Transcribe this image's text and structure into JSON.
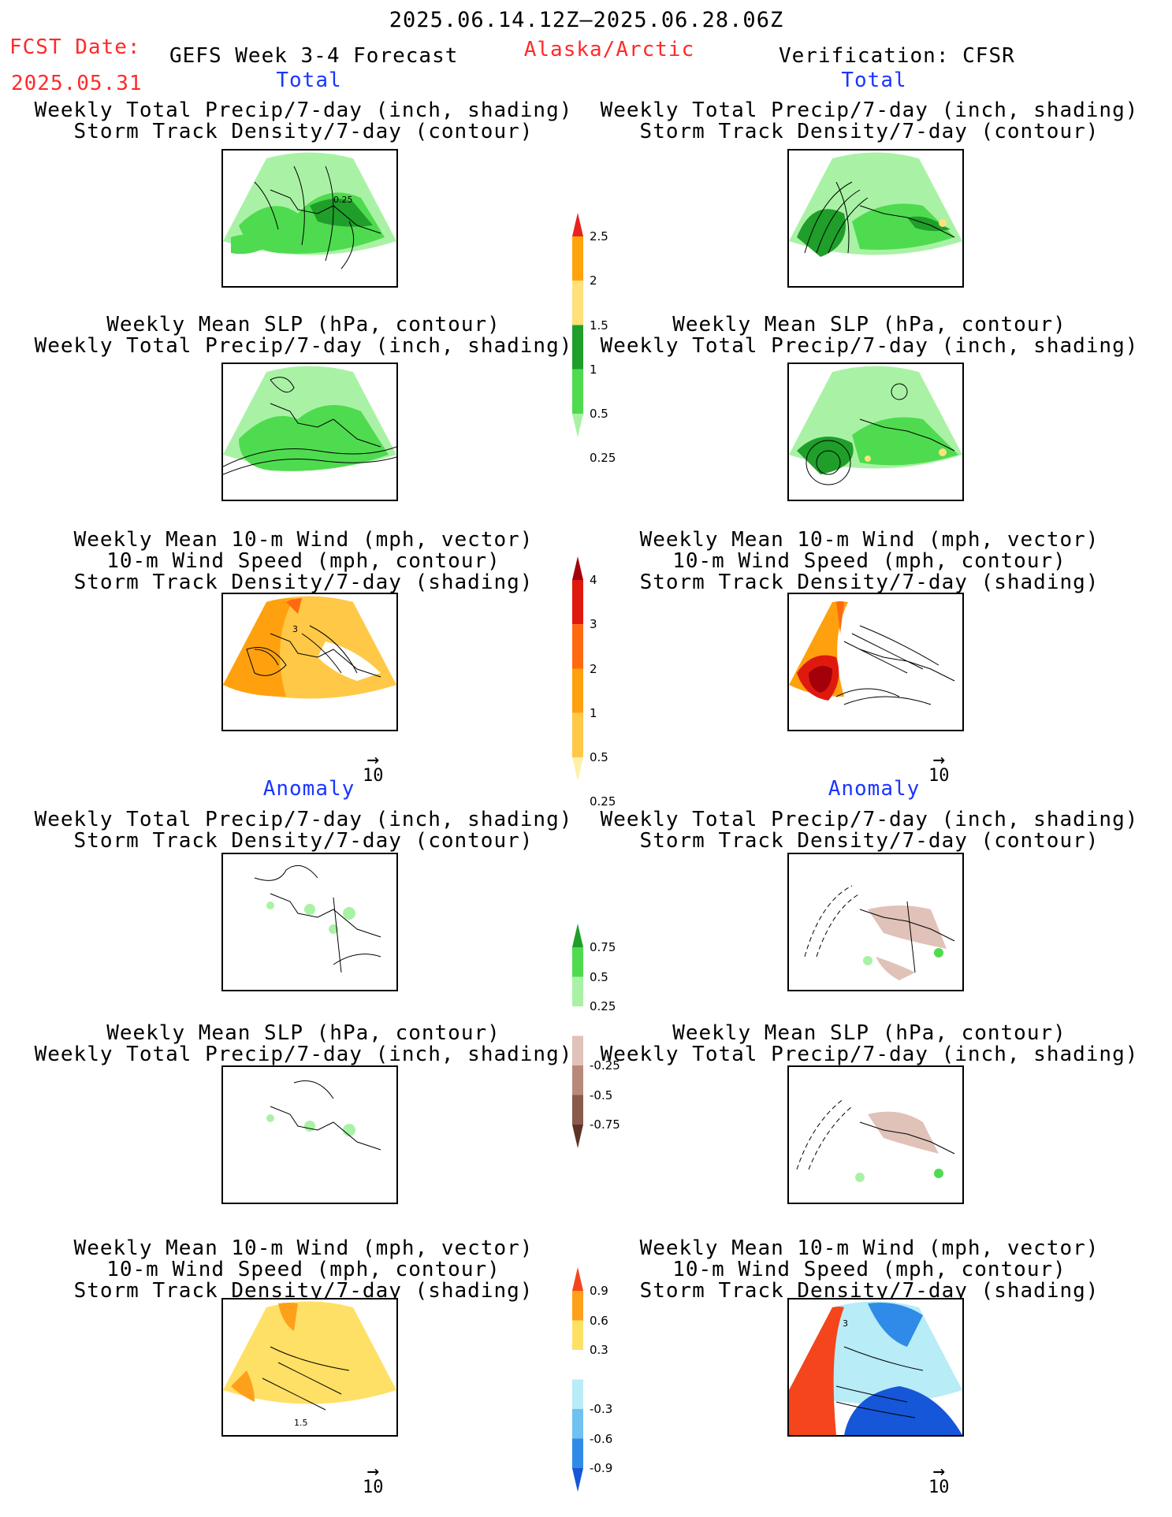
{
  "header": {
    "date_range": "2025.06.14.12Z–2025.06.28.06Z",
    "fcst_label": "FCST Date:",
    "fcst_date": "2025.05.31",
    "model": "GEFS Week 3-4 Forecast",
    "region": "Alaska/Arctic",
    "verification": "Verification: CFSR"
  },
  "sections": {
    "total_left": "Total",
    "total_right": "Total",
    "anomaly_left": "Anomaly",
    "anomaly_right": "Anomaly"
  },
  "titles": {
    "precip_storm": [
      "Weekly Total Precip/7-day (inch, shading)",
      "Storm Track Density/7-day (contour)"
    ],
    "slp_precip": [
      "Weekly Mean SLP (hPa, contour)",
      "Weekly Total Precip/7-day (inch, shading)"
    ],
    "wind_storm": [
      "Weekly Mean 10-m Wind (mph, vector)",
      "10-m Wind Speed (mph, contour)",
      "Storm Track Density/7-day (shading)"
    ]
  },
  "panels": {
    "row1_left": {
      "contour_label": "0.25",
      "field": "total precip + storm track"
    },
    "row3_left": {
      "contour_label": "3",
      "field": "wind + storm track total"
    },
    "row3_right": {
      "contour_label": "",
      "field": "wind + storm track total"
    },
    "row6_left": {
      "contour_label": "1.5",
      "field": "wind + storm track anomaly"
    },
    "row6_right": {
      "contour_label": "3",
      "field": "wind + storm track anomaly"
    }
  },
  "vector_reference": {
    "value": "10",
    "units": "mph"
  },
  "colorbars": {
    "precip_total": {
      "labels": [
        "2.5",
        "2",
        "1.5",
        "1",
        "0.5",
        "0.25"
      ],
      "colors": [
        "#e8221c",
        "#ffa30a",
        "#ffe07a",
        "#1f9e2a",
        "#4fdb4f",
        "#a9f2a5"
      ]
    },
    "storm_total": {
      "labels": [
        "4",
        "3",
        "2",
        "1",
        "0.5",
        "0.25"
      ],
      "colors": [
        "#a3000a",
        "#e0190f",
        "#ff6a10",
        "#ffa10e",
        "#ffc847",
        "#fff0a8"
      ]
    },
    "precip_anom": {
      "labels": [
        "0.75",
        "0.5",
        "0.25",
        "-0.25",
        "-0.5",
        "-0.75"
      ],
      "colors": [
        "#1f9e2a",
        "#4fdb4f",
        "#a9f2a5",
        "#ffffff",
        "#e0c2b8",
        "#b8897a",
        "#8a5a4c",
        "#5c3427"
      ]
    },
    "storm_anom": {
      "labels": [
        "0.9",
        "0.6",
        "0.3",
        "-0.3",
        "-0.6",
        "-0.9"
      ],
      "colors": [
        "#f5451c",
        "#ffa01a",
        "#ffe066",
        "#ffffff",
        "#b8ecf7",
        "#6fc2f0",
        "#2f8ae8",
        "#1656d8"
      ]
    }
  }
}
